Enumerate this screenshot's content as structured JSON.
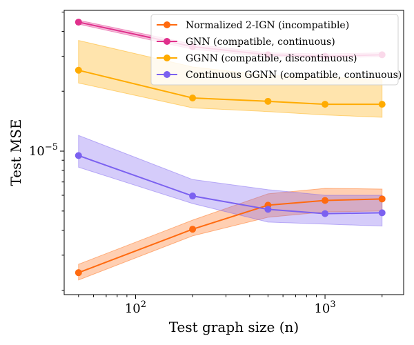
{
  "chart_data": {
    "type": "line",
    "xlabel": "Test graph size (n)",
    "ylabel": "Test MSE",
    "xscale": "log",
    "yscale": "log",
    "xlim": [
      42,
      2600
    ],
    "ylim": [
      1.9e-06,
      5.1e-05
    ],
    "x": [
      50,
      200,
      500,
      1000,
      2000
    ],
    "x_tick_labels": [
      {
        "value": 100,
        "base": "10",
        "exp": "2"
      },
      {
        "value": 1000,
        "base": "10",
        "exp": "3"
      }
    ],
    "y_tick_labels": [
      {
        "value": 1e-05,
        "base": "10",
        "exp": "−5"
      }
    ],
    "legend": {
      "position": "top-right"
    },
    "grid": false,
    "series": [
      {
        "name": "Normalized 2-IGN (incompatible)",
        "color": "#ff6a0f",
        "values": [
          2.45e-06,
          4.05e-06,
          5.35e-06,
          5.65e-06,
          5.75e-06
        ],
        "lower": [
          2.25e-06,
          3.75e-06,
          4.65e-06,
          4.95e-06,
          5e-06
        ],
        "upper": [
          2.7e-06,
          4.5e-06,
          6.1e-06,
          6.5e-06,
          6.45e-06
        ]
      },
      {
        "name": "GNN (compatible, continuous)",
        "color": "#e0308c",
        "values": [
          4.45e-05,
          3.35e-05,
          3.05e-05,
          3e-05,
          3.05e-05
        ],
        "lower": [
          4.35e-05,
          3.25e-05,
          2.98e-05,
          2.95e-05,
          2.98e-05
        ],
        "upper": [
          4.55e-05,
          3.45e-05,
          3.12e-05,
          3.08e-05,
          3.12e-05
        ]
      },
      {
        "name": "GGNN (compatible, discontinuous)",
        "color": "#ffab00",
        "values": [
          2.55e-05,
          1.85e-05,
          1.78e-05,
          1.72e-05,
          1.72e-05
        ],
        "lower": [
          2.2e-05,
          1.65e-05,
          1.58e-05,
          1.52e-05,
          1.48e-05
        ],
        "upper": [
          3.6e-05,
          2.65e-05,
          2.4e-05,
          2.35e-05,
          2.3e-05
        ]
      },
      {
        "name": "Continuous GGNN (compatible, continuous)",
        "color": "#7b61f0",
        "values": [
          9.5e-06,
          5.95e-06,
          5.1e-06,
          4.85e-06,
          4.9e-06
        ],
        "lower": [
          8.3e-06,
          5.45e-06,
          4.4e-06,
          4.3e-06,
          4.2e-06
        ],
        "upper": [
          1.2e-05,
          7.2e-06,
          6.4e-06,
          6e-06,
          6e-06
        ]
      }
    ]
  }
}
